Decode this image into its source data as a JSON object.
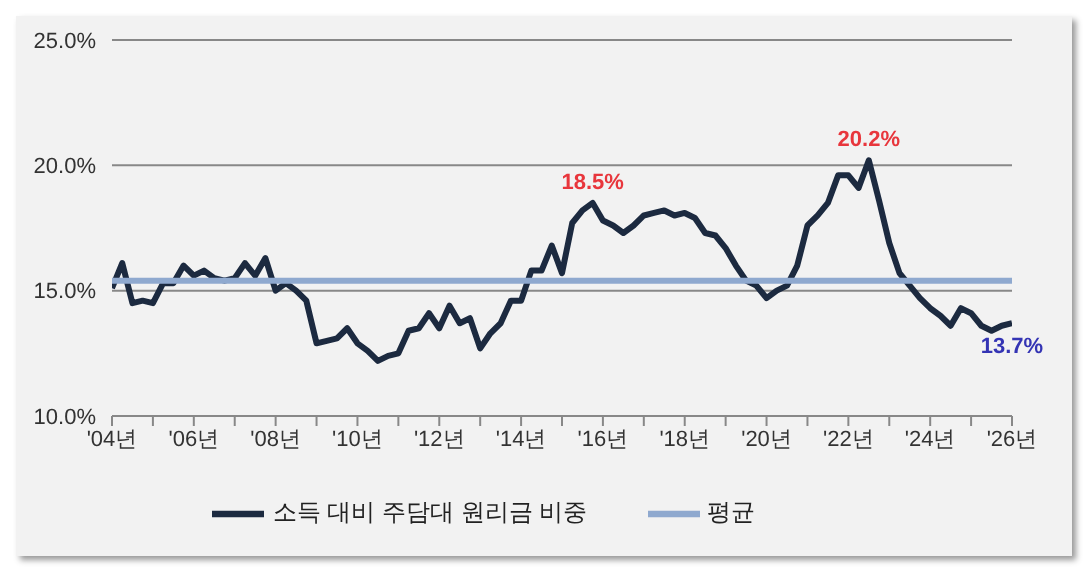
{
  "chart_data": {
    "type": "line",
    "legend": "bottom",
    "grid": "y",
    "marker": "none",
    "line_style": "solid",
    "ylim": [
      10,
      25
    ],
    "yticks": [
      {
        "value": 10,
        "label": "10.0%"
      },
      {
        "value": 15,
        "label": "15.0%"
      },
      {
        "value": 20,
        "label": "20.0%"
      },
      {
        "value": 25,
        "label": "25.0%"
      }
    ],
    "categories": [
      "'04년",
      null,
      null,
      null,
      null,
      null,
      null,
      null,
      "'06년",
      null,
      null,
      null,
      null,
      null,
      null,
      null,
      "'08년",
      null,
      null,
      null,
      null,
      null,
      null,
      null,
      "'10년",
      null,
      null,
      null,
      null,
      null,
      null,
      null,
      "'12년",
      null,
      null,
      null,
      null,
      null,
      null,
      null,
      "'14년",
      null,
      null,
      null,
      null,
      null,
      null,
      null,
      "'16년",
      null,
      null,
      null,
      null,
      null,
      null,
      null,
      "'18년",
      null,
      null,
      null,
      null,
      null,
      null,
      null,
      "'20년",
      null,
      null,
      null,
      null,
      null,
      null,
      null,
      "'22년",
      null,
      null,
      null,
      null,
      null,
      null,
      null,
      "'24년",
      null,
      null,
      null,
      null,
      null,
      null,
      null,
      "'26년"
    ],
    "series": [
      {
        "name": "소득 대비 주담대 원리금 비중",
        "color": "#1c2a40",
        "values": [
          15.1,
          16.1,
          14.5,
          14.6,
          14.5,
          15.3,
          15.3,
          16.0,
          15.6,
          15.8,
          15.5,
          15.4,
          15.5,
          16.1,
          15.6,
          16.3,
          15.0,
          15.3,
          15.0,
          14.6,
          12.9,
          13.0,
          13.1,
          13.5,
          12.9,
          12.6,
          12.2,
          12.4,
          12.5,
          13.4,
          13.5,
          14.1,
          13.5,
          14.4,
          13.7,
          13.9,
          12.7,
          13.3,
          13.7,
          14.6,
          14.6,
          15.8,
          15.8,
          16.8,
          15.7,
          17.7,
          18.2,
          18.5,
          17.8,
          17.6,
          17.3,
          17.6,
          18.0,
          18.1,
          18.2,
          18.0,
          18.1,
          17.9,
          17.3,
          17.2,
          16.7,
          16.0,
          15.4,
          15.2,
          14.7,
          15.0,
          15.2,
          16.0,
          17.6,
          18.0,
          18.5,
          19.6,
          19.6,
          19.1,
          20.2,
          18.6,
          16.9,
          15.7,
          15.2,
          14.7,
          14.3,
          14.0,
          13.6,
          14.3,
          14.1,
          13.6,
          13.4,
          13.6,
          13.7
        ]
      },
      {
        "name": "평균",
        "color": "#8fa9cf",
        "values": [
          15.4,
          15.4,
          15.4,
          15.4,
          15.4,
          15.4,
          15.4,
          15.4,
          15.4,
          15.4,
          15.4,
          15.4,
          15.4,
          15.4,
          15.4,
          15.4,
          15.4,
          15.4,
          15.4,
          15.4,
          15.4,
          15.4,
          15.4,
          15.4,
          15.4,
          15.4,
          15.4,
          15.4,
          15.4,
          15.4,
          15.4,
          15.4,
          15.4,
          15.4,
          15.4,
          15.4,
          15.4,
          15.4,
          15.4,
          15.4,
          15.4,
          15.4,
          15.4,
          15.4,
          15.4,
          15.4,
          15.4,
          15.4,
          15.4,
          15.4,
          15.4,
          15.4,
          15.4,
          15.4,
          15.4,
          15.4,
          15.4,
          15.4,
          15.4,
          15.4,
          15.4,
          15.4,
          15.4,
          15.4,
          15.4,
          15.4,
          15.4,
          15.4,
          15.4,
          15.4,
          15.4,
          15.4,
          15.4,
          15.4,
          15.4,
          15.4,
          15.4,
          15.4,
          15.4,
          15.4,
          15.4,
          15.4,
          15.4,
          15.4,
          15.4,
          15.4,
          15.4,
          15.4,
          15.4
        ]
      }
    ],
    "annotations": [
      {
        "text": "18.5%",
        "x": "'16년",
        "y": 18.5
      },
      {
        "text": "20.2%",
        "y": 20.2
      },
      {
        "text": "13.7%",
        "x": "'26년",
        "y": 13.7
      }
    ]
  }
}
